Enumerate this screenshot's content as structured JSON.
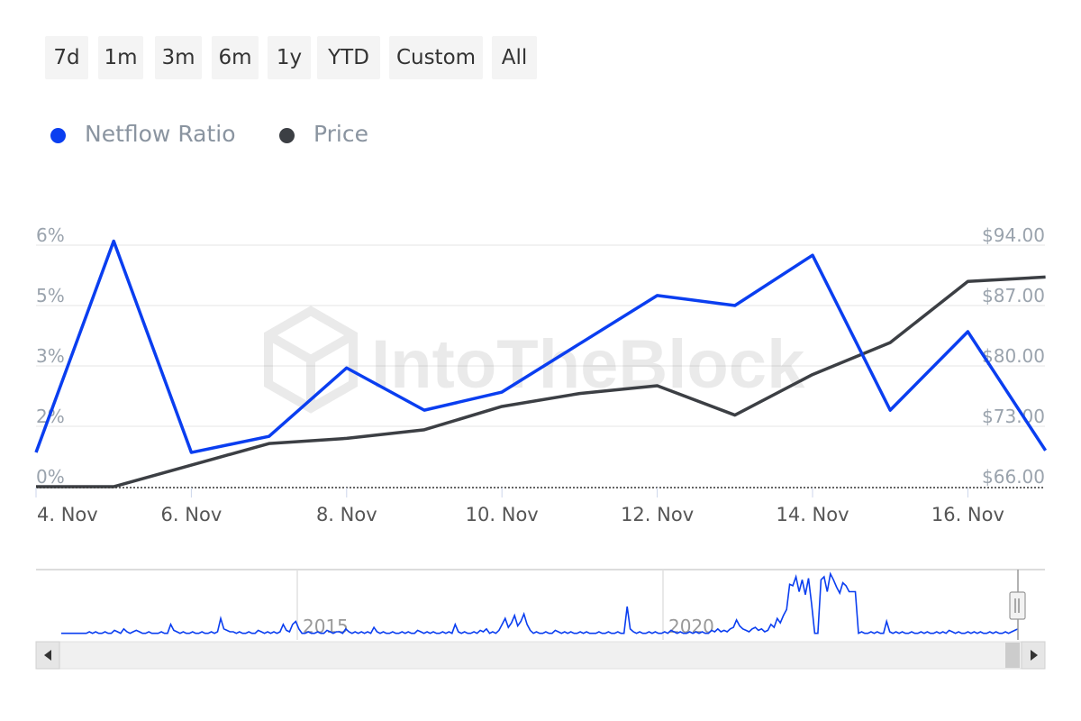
{
  "range_buttons": [
    "7d",
    "1m",
    "3m",
    "6m",
    "1y",
    "YTD",
    "Custom",
    "All"
  ],
  "legend": [
    {
      "label": "Netflow Ratio",
      "color": "#0a3ef0"
    },
    {
      "label": "Price",
      "color": "#3c3f44"
    }
  ],
  "watermark": "IntoTheBlock",
  "colors": {
    "netflow": "#0a3ef0",
    "price": "#3c3f44",
    "grid": "#e6e6e6",
    "axis_text": "#9aa3ad"
  },
  "chart_data": {
    "type": "line",
    "x": [
      "4. Nov",
      "5. Nov",
      "6. Nov",
      "7. Nov",
      "8. Nov",
      "9. Nov",
      "10. Nov",
      "11. Nov",
      "12. Nov",
      "13. Nov",
      "14. Nov",
      "15. Nov",
      "16. Nov",
      "17. Nov"
    ],
    "x_tick_labels": [
      "4. Nov",
      "6. Nov",
      "8. Nov",
      "10. Nov",
      "12. Nov",
      "14. Nov",
      "16. Nov"
    ],
    "series": [
      {
        "name": "Netflow Ratio",
        "axis": "left",
        "values": [
          0.85,
          6.1,
          0.85,
          1.25,
          2.95,
          1.9,
          2.35,
          3.55,
          4.75,
          4.5,
          5.75,
          1.9,
          3.85,
          0.9
        ]
      },
      {
        "name": "Price",
        "axis": "right",
        "values": [
          66.0,
          66.0,
          68.5,
          71.0,
          71.6,
          72.6,
          75.3,
          76.8,
          77.7,
          74.3,
          79.0,
          82.7,
          89.8,
          90.3
        ]
      }
    ],
    "y_left": {
      "ticks": [
        0,
        1.5,
        3,
        4.5,
        6
      ],
      "tick_labels": [
        "0%",
        "2%",
        "3%",
        "5%",
        "6%"
      ],
      "range": [
        0,
        6
      ]
    },
    "y_right": {
      "ticks": [
        66,
        73,
        80,
        87,
        94
      ],
      "tick_labels": [
        "$66.00",
        "$73.00",
        "$80.00",
        "$87.00",
        "$94.00"
      ],
      "range": [
        66,
        94
      ]
    },
    "grid": true,
    "legend_position": "top-left",
    "navigator": {
      "year_labels": [
        "2015",
        "2020"
      ],
      "values": [
        2,
        2,
        2,
        2,
        2,
        2,
        2,
        2,
        2,
        3,
        2,
        3,
        2,
        2,
        3,
        2,
        2,
        4,
        3,
        2,
        5,
        3,
        2,
        3,
        4,
        3,
        2,
        2,
        3,
        2,
        2,
        2,
        3,
        2,
        2,
        8,
        4,
        3,
        2,
        3,
        2,
        2,
        3,
        2,
        2,
        3,
        2,
        2,
        3,
        2,
        3,
        12,
        5,
        4,
        3,
        3,
        2,
        3,
        2,
        2,
        3,
        2,
        2,
        4,
        3,
        2,
        3,
        2,
        3,
        2,
        3,
        8,
        4,
        3,
        8,
        10,
        5,
        2,
        2,
        3,
        2,
        2,
        3,
        2,
        2,
        4,
        3,
        2,
        3,
        3,
        2,
        5,
        3,
        2,
        3,
        2,
        3,
        2,
        3,
        2,
        6,
        3,
        2,
        3,
        2,
        2,
        3,
        2,
        2,
        3,
        2,
        3,
        2,
        2,
        4,
        3,
        2,
        3,
        2,
        3,
        2,
        2,
        3,
        2,
        3,
        2,
        8,
        3,
        2,
        3,
        2,
        2,
        3,
        2,
        4,
        3,
        5,
        2,
        3,
        2,
        4,
        8,
        12,
        6,
        9,
        14,
        7,
        10,
        15,
        8,
        4,
        2,
        3,
        2,
        2,
        3,
        2,
        2,
        4,
        3,
        2,
        3,
        2,
        3,
        2,
        2,
        3,
        2,
        3,
        2,
        2,
        2,
        3,
        2,
        2,
        3,
        2,
        2,
        3,
        2,
        2,
        20,
        5,
        3,
        2,
        3,
        2,
        2,
        3,
        2,
        3,
        2,
        2,
        3,
        2,
        4,
        3,
        2,
        3,
        2,
        2,
        3,
        2,
        3,
        2,
        3,
        2,
        2,
        4,
        3,
        5,
        3,
        4,
        3,
        5,
        6,
        11,
        7,
        5,
        4,
        3,
        5,
        6,
        4,
        5,
        3,
        4,
        8,
        6,
        12,
        9,
        14,
        18,
        35,
        34,
        40,
        30,
        38,
        28,
        39,
        22,
        2,
        2,
        38,
        40,
        30,
        42,
        38,
        33,
        29,
        36,
        34,
        30,
        30,
        30,
        2,
        3,
        2,
        2,
        3,
        2,
        3,
        2,
        2,
        10,
        3,
        2,
        3,
        2,
        3,
        2,
        2,
        3,
        2,
        2,
        3,
        2,
        3,
        2,
        2,
        3,
        2,
        3,
        2,
        4,
        3,
        2,
        3,
        2,
        2,
        3,
        2,
        3,
        2,
        3,
        2,
        2,
        3,
        2,
        3,
        2,
        2,
        3,
        2,
        3,
        4,
        5
      ]
    }
  }
}
